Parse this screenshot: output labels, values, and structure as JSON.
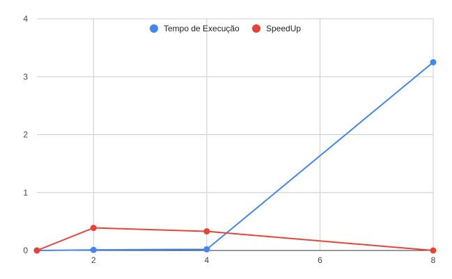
{
  "chart_data": {
    "type": "line",
    "title": "",
    "xlabel": "",
    "ylabel": "",
    "x": [
      1,
      2,
      4,
      8
    ],
    "xlim": [
      1,
      8
    ],
    "ylim": [
      0,
      4
    ],
    "x_ticks": [
      2,
      4,
      6,
      8
    ],
    "y_ticks": [
      0,
      1,
      2,
      3,
      4
    ],
    "x_tick_labels": [
      "2",
      "4",
      "6",
      "8"
    ],
    "y_tick_labels": [
      "0",
      "1",
      "2",
      "3",
      "4"
    ],
    "grid": true,
    "legend_position": "top-center",
    "series": [
      {
        "name": "Tempo de Execução",
        "color": "#4285f4",
        "values": [
          0.0,
          0.01,
          0.02,
          3.25
        ]
      },
      {
        "name": "SpeedUp",
        "color": "#ea4335",
        "values": [
          0.0,
          0.39,
          0.33,
          0.0
        ]
      }
    ]
  }
}
